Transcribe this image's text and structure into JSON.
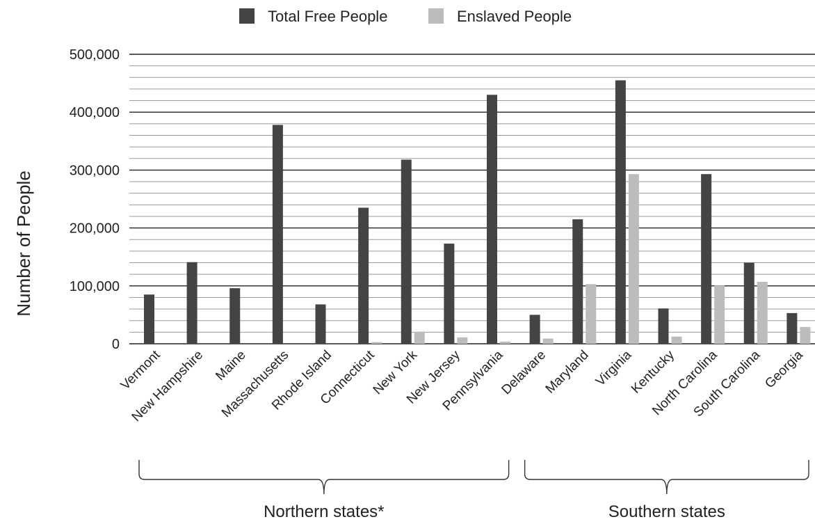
{
  "chart_data": {
    "type": "bar",
    "title": "",
    "xlabel": "",
    "ylabel": "Number of People",
    "ylim": [
      0,
      500000
    ],
    "y_ticks": [
      0,
      100000,
      200000,
      300000,
      400000,
      500000
    ],
    "y_tick_labels": [
      "0",
      "100,000",
      "200,000",
      "300,000",
      "400,000",
      "500,000"
    ],
    "grid": true,
    "legend_position": "top-center",
    "categories": [
      "Vermont",
      "New Hampshire",
      "Maine",
      "Massachusetts",
      "Rhode Island",
      "Connecticut",
      "New York",
      "New Jersey",
      "Pennsylvania",
      "Delaware",
      "Maryland",
      "Virginia",
      "Kentucky",
      "North Carolina",
      "South Carolina",
      "Georgia"
    ],
    "series": [
      {
        "name": "Total Free People",
        "color": "#444444",
        "values": [
          85000,
          141000,
          96000,
          378000,
          68000,
          235000,
          318000,
          173000,
          430000,
          50000,
          215000,
          455000,
          61000,
          293000,
          140000,
          53000
        ]
      },
      {
        "name": "Enslaved People",
        "color": "#bcbcbc",
        "values": [
          0,
          0,
          0,
          0,
          0,
          2800,
          21000,
          11000,
          3700,
          9000,
          103000,
          293000,
          12400,
          100600,
          107000,
          29000
        ]
      }
    ],
    "groups": [
      {
        "label": "Northern states*",
        "from": 0,
        "to": 8
      },
      {
        "label": "Southern states",
        "from": 9,
        "to": 15
      }
    ]
  }
}
